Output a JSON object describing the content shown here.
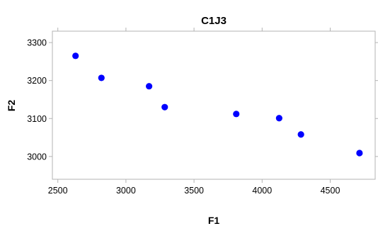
{
  "chart_data": {
    "type": "scatter",
    "title": "C1J3",
    "xlabel": "F1",
    "ylabel": "F2",
    "xlim": [
      2460,
      4830
    ],
    "ylim": [
      2940,
      3330
    ],
    "xticks": [
      2500,
      3000,
      3500,
      4000,
      4500
    ],
    "yticks": [
      3000,
      3100,
      3200,
      3300
    ],
    "grid": false,
    "marker_color": "#0000ff",
    "points": [
      {
        "x": 2630,
        "y": 3265
      },
      {
        "x": 2820,
        "y": 3207
      },
      {
        "x": 3170,
        "y": 3185
      },
      {
        "x": 3285,
        "y": 3130
      },
      {
        "x": 3810,
        "y": 3112
      },
      {
        "x": 4125,
        "y": 3101
      },
      {
        "x": 4285,
        "y": 3058
      },
      {
        "x": 4715,
        "y": 3009
      }
    ]
  }
}
